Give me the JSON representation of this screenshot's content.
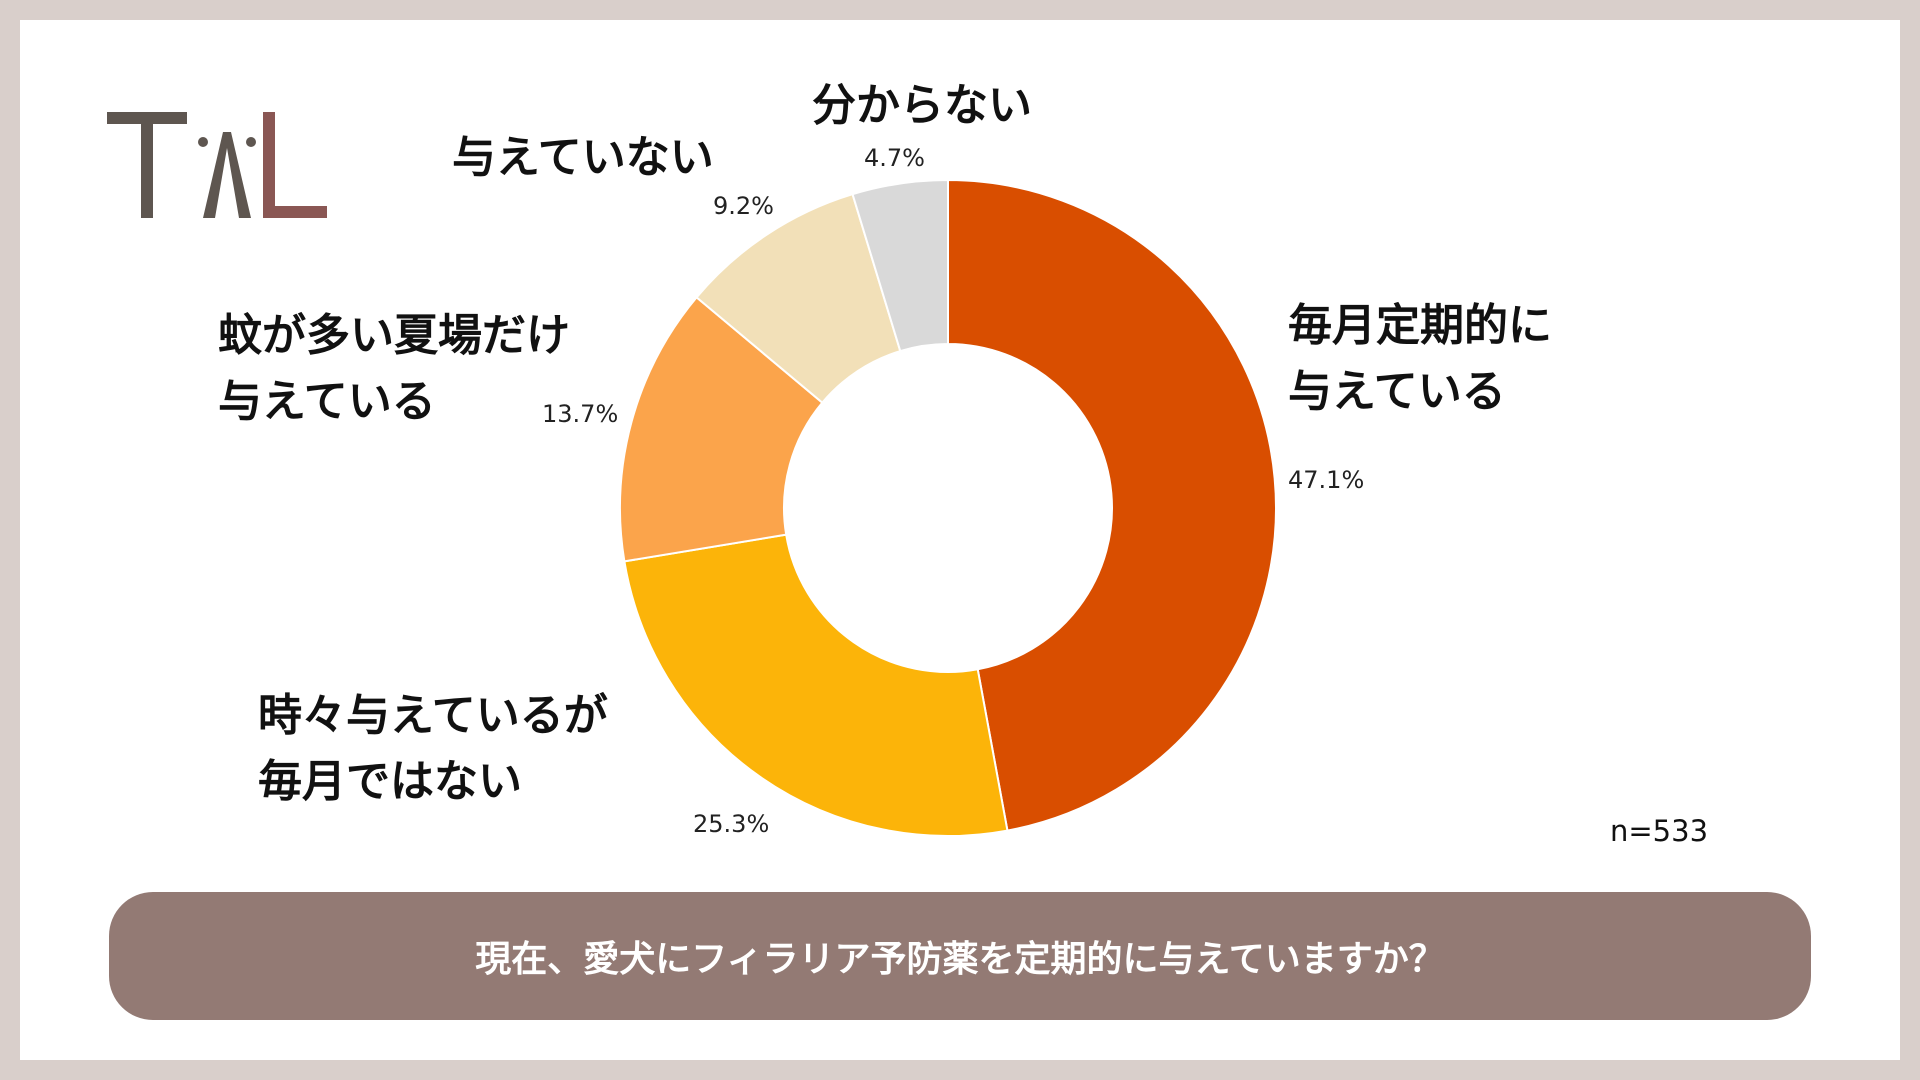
{
  "logo": {
    "text": "TAL",
    "colors": {
      "primary": "#5e5650",
      "accent": "#8a5754"
    }
  },
  "question": "現在、愛犬にフィラリア予防薬を定期的に与えていますか？",
  "sample_size": "n=533",
  "chart_data": {
    "type": "pie",
    "style": "donut",
    "categories": [
      "毎月定期的に与えている",
      "時々与えているが毎月ではない",
      "蚊が多い夏場だけ与えている",
      "与えていない",
      "分からない"
    ],
    "label_lines": [
      [
        "毎月定期的に",
        "与えている"
      ],
      [
        "時々与えているが",
        "毎月ではない"
      ],
      [
        "蚊が多い夏場だけ",
        "与えている"
      ],
      [
        "与えていない"
      ],
      [
        "分からない"
      ]
    ],
    "values": [
      47.1,
      25.3,
      13.7,
      9.2,
      4.7
    ],
    "value_labels": [
      "47.1%",
      "25.3%",
      "13.7%",
      "9.2%",
      "4.7%"
    ],
    "colors": [
      "#d94e00",
      "#fcb409",
      "#fba44b",
      "#f2e0b8",
      "#d9d9d9"
    ],
    "start": "12 o'clock",
    "direction": "clockwise",
    "legend": "none"
  }
}
